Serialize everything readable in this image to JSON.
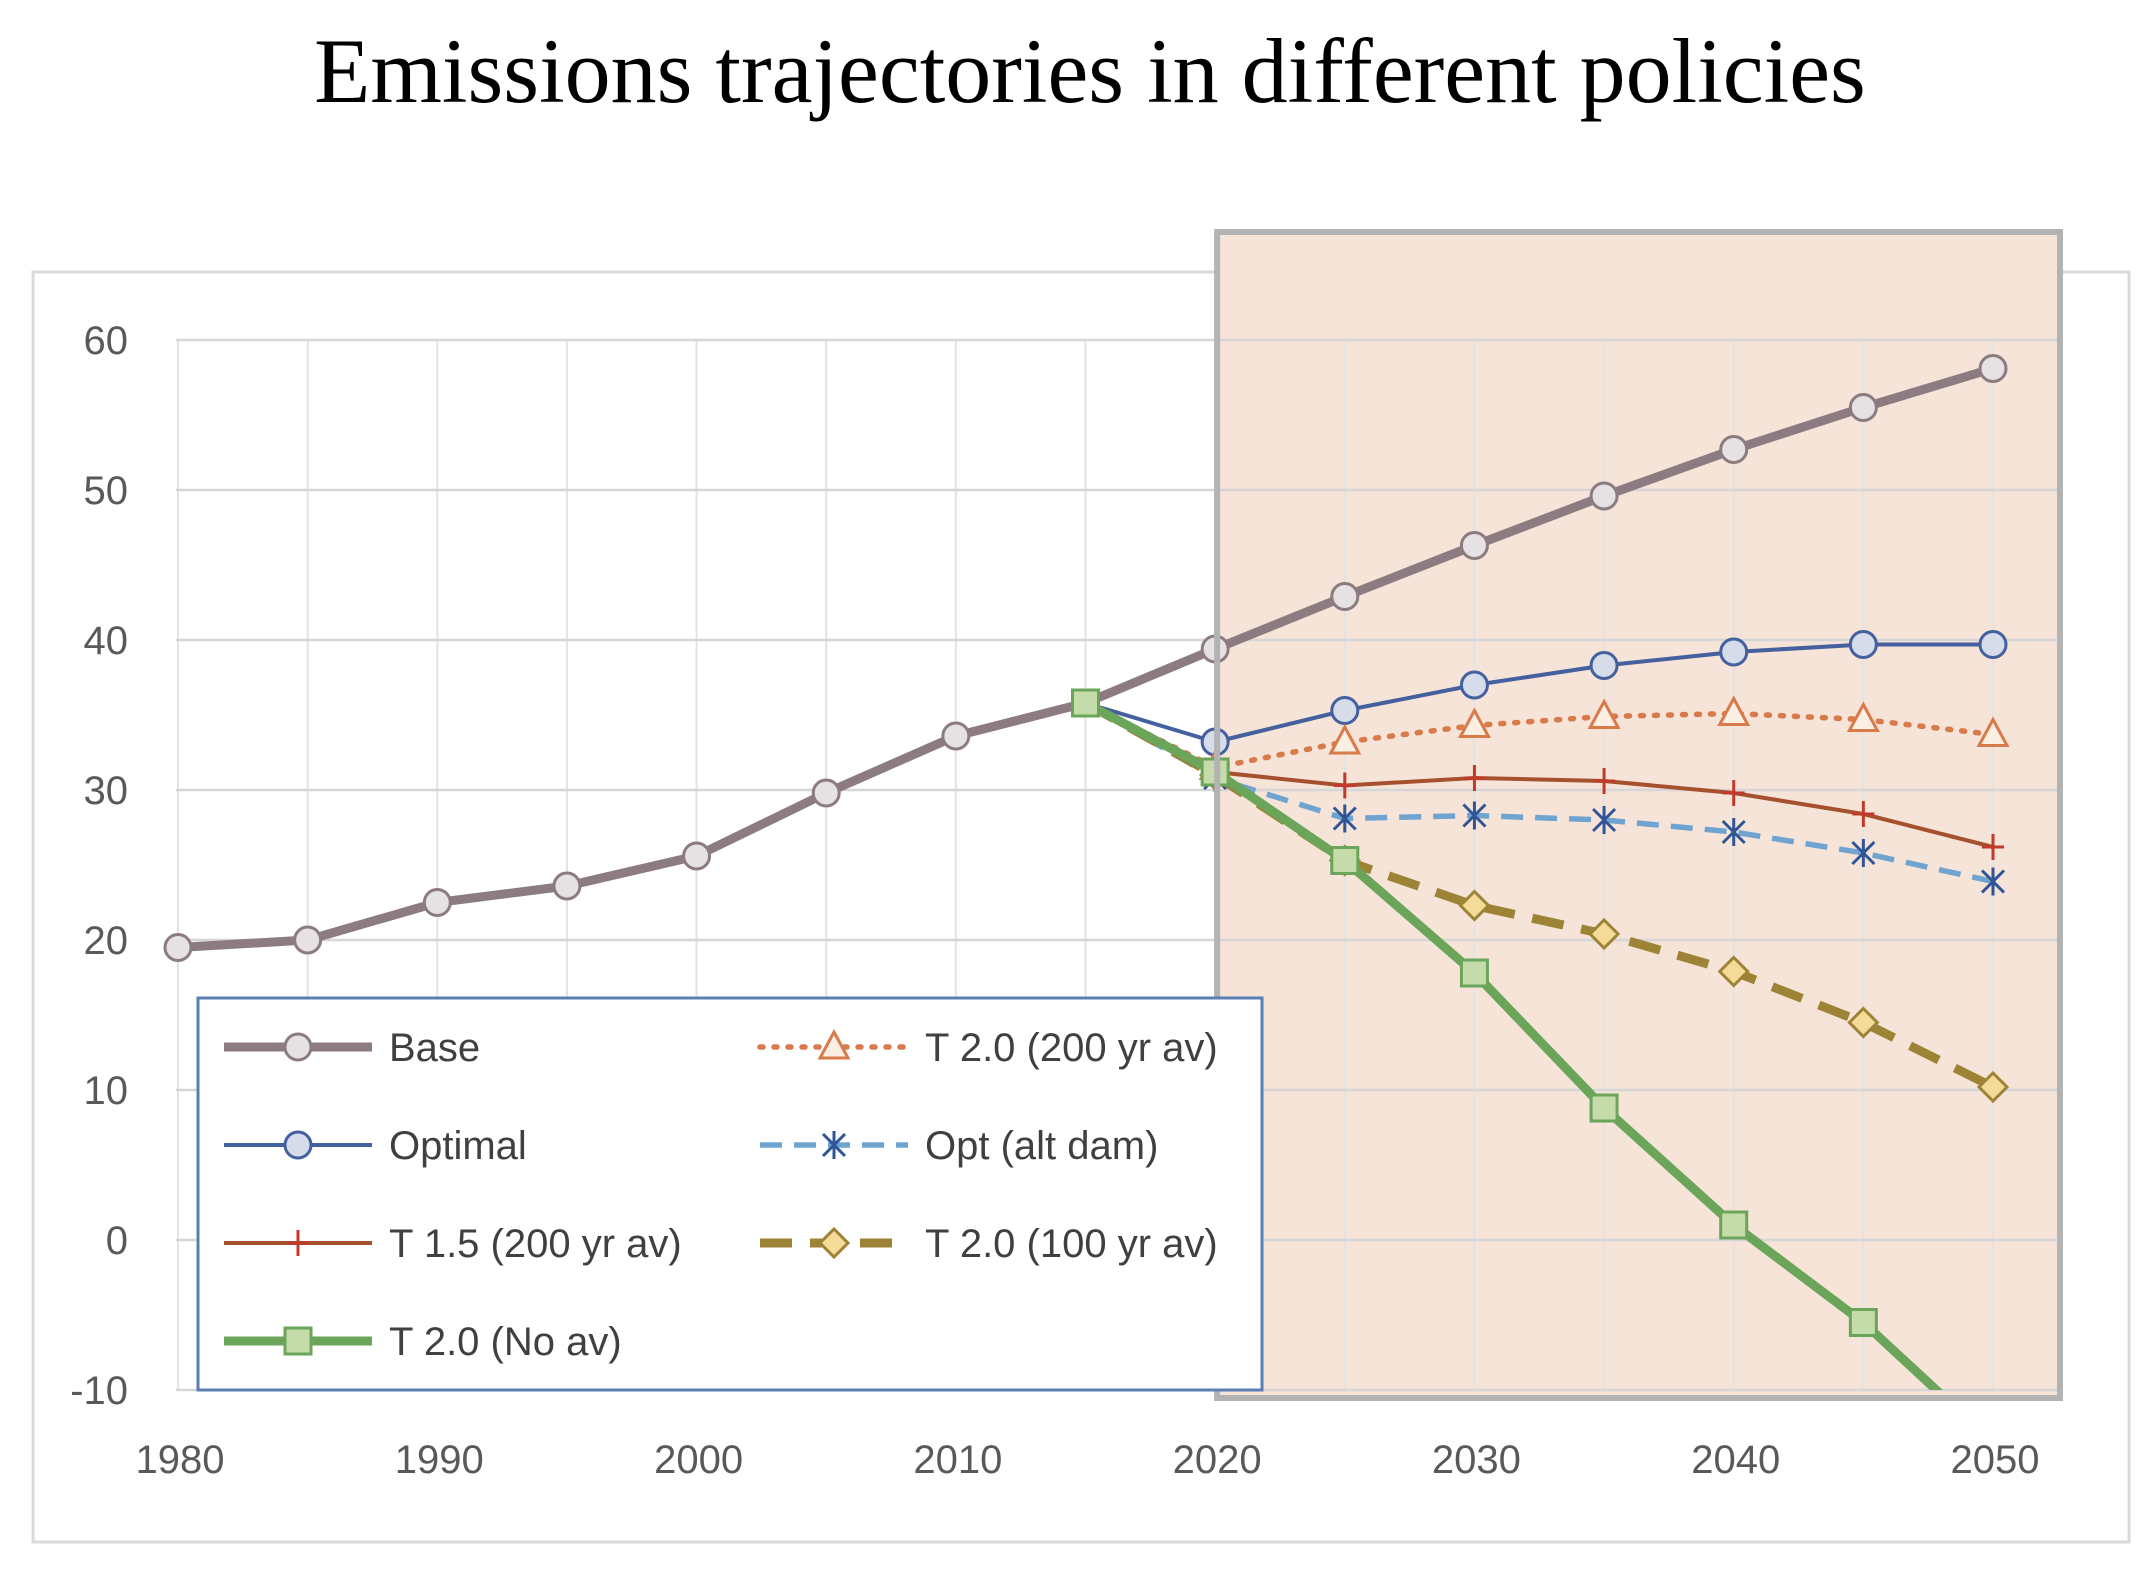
{
  "chart_data": {
    "type": "line",
    "title": "Emissions trajectories in different policies",
    "xlabel": "",
    "ylabel": "",
    "xlim": [
      1975,
      2055
    ],
    "ylim": [
      -10,
      60
    ],
    "x_ticks": [
      1980,
      1990,
      2000,
      2010,
      2020,
      2030,
      2040,
      2050
    ],
    "y_ticks": [
      60,
      50,
      40,
      30,
      20,
      10,
      0,
      -10
    ],
    "grid": true,
    "shaded_region": {
      "x_from": 2020,
      "x_to": 2050,
      "color": "#f6e4d9",
      "border": "#b3b3b3"
    },
    "series": [
      {
        "name": "Base",
        "color": "#8c7b80",
        "marker": "circle",
        "line": "solid",
        "width": "thick",
        "x": [
          1980,
          1985,
          1990,
          1995,
          2000,
          2005,
          2010,
          2015,
          2020,
          2025,
          2030,
          2035,
          2040,
          2045,
          2050
        ],
        "values": [
          19.5,
          20.0,
          22.5,
          23.6,
          25.6,
          29.8,
          33.6,
          35.8,
          39.4,
          42.9,
          46.3,
          49.6,
          52.7,
          55.5,
          58.1
        ]
      },
      {
        "name": "T 2.0 (200 yr av)",
        "color": "#d87a4a",
        "marker": "triangle",
        "line": "dotted",
        "width": "medium",
        "x": [
          2015,
          2020,
          2025,
          2030,
          2035,
          2040,
          2045,
          2050
        ],
        "values": [
          35.8,
          31.5,
          33.2,
          34.3,
          34.9,
          35.1,
          34.7,
          33.7
        ]
      },
      {
        "name": "Optimal",
        "color": "#44609e",
        "marker": "circle",
        "line": "solid",
        "width": "thin",
        "x": [
          2015,
          2020,
          2025,
          2030,
          2035,
          2040,
          2045,
          2050
        ],
        "values": [
          35.8,
          33.2,
          35.3,
          37.0,
          38.3,
          39.2,
          39.7,
          39.7
        ]
      },
      {
        "name": "Opt (alt dam)",
        "color": "#6fa3d0",
        "marker": "asterisk",
        "line": "dashed",
        "width": "medium",
        "x": [
          2015,
          2020,
          2025,
          2030,
          2035,
          2040,
          2045,
          2050
        ],
        "values": [
          35.8,
          30.8,
          28.1,
          28.3,
          28.0,
          27.2,
          25.8,
          23.9
        ]
      },
      {
        "name": "T 1.5 (200 yr av)",
        "color": "#a6512e",
        "marker": "plus",
        "line": "solid",
        "width": "thin",
        "x": [
          2015,
          2020,
          2025,
          2030,
          2035,
          2040,
          2045,
          2050
        ],
        "values": [
          35.8,
          31.2,
          30.3,
          30.8,
          30.6,
          29.8,
          28.4,
          26.2
        ]
      },
      {
        "name": "T 2.0 (100 yr av)",
        "color": "#9c8335",
        "marker": "diamond",
        "line": "dashed",
        "width": "thick",
        "x": [
          2015,
          2020,
          2025,
          2030,
          2035,
          2040,
          2045,
          2050
        ],
        "values": [
          35.8,
          31.0,
          25.3,
          22.3,
          20.4,
          17.9,
          14.5,
          10.2
        ]
      },
      {
        "name": "T 2.0 (No av)",
        "color": "#6aa55a",
        "marker": "square",
        "line": "solid",
        "width": "thick",
        "x": [
          2015,
          2020,
          2025,
          2030,
          2035,
          2040,
          2045,
          2050
        ],
        "values": [
          35.8,
          31.2,
          25.3,
          17.8,
          8.8,
          1.0,
          -5.5,
          -13.5
        ]
      }
    ],
    "legend": {
      "location": "lower-left",
      "entries": [
        "Base",
        "T 2.0 (200 yr av)",
        "Optimal",
        "Opt (alt dam)",
        "T 1.5 (200 yr av)",
        "T 2.0 (100 yr av)",
        "T 2.0 (No av)"
      ]
    }
  }
}
